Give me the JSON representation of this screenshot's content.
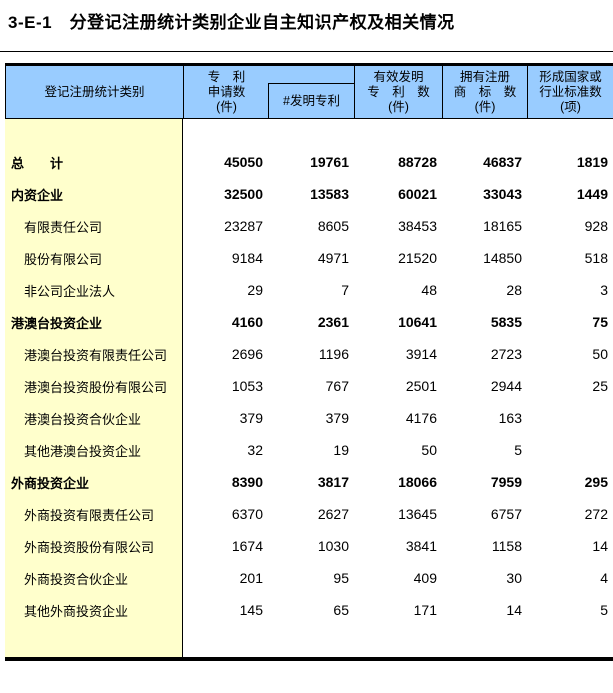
{
  "title": "3-E-1　分登记注册统计类别企业自主知识产权及相关情况",
  "colors": {
    "header_bg": "#99CCFF",
    "category_column_bg": "#FFFFCC",
    "border": "#000000"
  },
  "table": {
    "header": {
      "category": "登记注册统计类别",
      "patent_applications": "专　利\n申请数\n(件)",
      "invention_patents": "#发明专利",
      "valid_invention_patents": "有效发明\n专　利　数\n(件)",
      "registered_trademarks": "拥有注册\n商　标　数\n(件)",
      "standards": "形成国家或\n行业标准数\n(项)"
    },
    "rows": [
      {
        "label": "总　　计",
        "style": "lead",
        "values": [
          "45050",
          "19761",
          "88728",
          "46837",
          "1819"
        ]
      },
      {
        "label": "内资企业",
        "style": "lead",
        "values": [
          "32500",
          "13583",
          "60021",
          "33043",
          "1449"
        ]
      },
      {
        "label": "有限责任公司",
        "style": "sub",
        "values": [
          "23287",
          "8605",
          "38453",
          "18165",
          "928"
        ]
      },
      {
        "label": "股份有限公司",
        "style": "sub",
        "values": [
          "9184",
          "4971",
          "21520",
          "14850",
          "518"
        ]
      },
      {
        "label": "非公司企业法人",
        "style": "sub",
        "values": [
          "29",
          "7",
          "48",
          "28",
          "3"
        ]
      },
      {
        "label": "港澳台投资企业",
        "style": "lead",
        "values": [
          "4160",
          "2361",
          "10641",
          "5835",
          "75"
        ]
      },
      {
        "label": "港澳台投资有限责任公司",
        "style": "sub",
        "values": [
          "2696",
          "1196",
          "3914",
          "2723",
          "50"
        ]
      },
      {
        "label": "港澳台投资股份有限公司",
        "style": "sub",
        "values": [
          "1053",
          "767",
          "2501",
          "2944",
          "25"
        ]
      },
      {
        "label": "港澳台投资合伙企业",
        "style": "sub",
        "values": [
          "379",
          "379",
          "4176",
          "163",
          ""
        ]
      },
      {
        "label": "其他港澳台投资企业",
        "style": "sub",
        "values": [
          "32",
          "19",
          "50",
          "5",
          ""
        ]
      },
      {
        "label": "外商投资企业",
        "style": "lead",
        "values": [
          "8390",
          "3817",
          "18066",
          "7959",
          "295"
        ]
      },
      {
        "label": "外商投资有限责任公司",
        "style": "sub",
        "values": [
          "6370",
          "2627",
          "13645",
          "6757",
          "272"
        ]
      },
      {
        "label": "外商投资股份有限公司",
        "style": "sub",
        "values": [
          "1674",
          "1030",
          "3841",
          "1158",
          "14"
        ]
      },
      {
        "label": "外商投资合伙企业",
        "style": "sub",
        "values": [
          "201",
          "95",
          "409",
          "30",
          "4"
        ]
      },
      {
        "label": "其他外商投资企业",
        "style": "sub",
        "values": [
          "145",
          "65",
          "171",
          "14",
          "5"
        ]
      }
    ]
  }
}
